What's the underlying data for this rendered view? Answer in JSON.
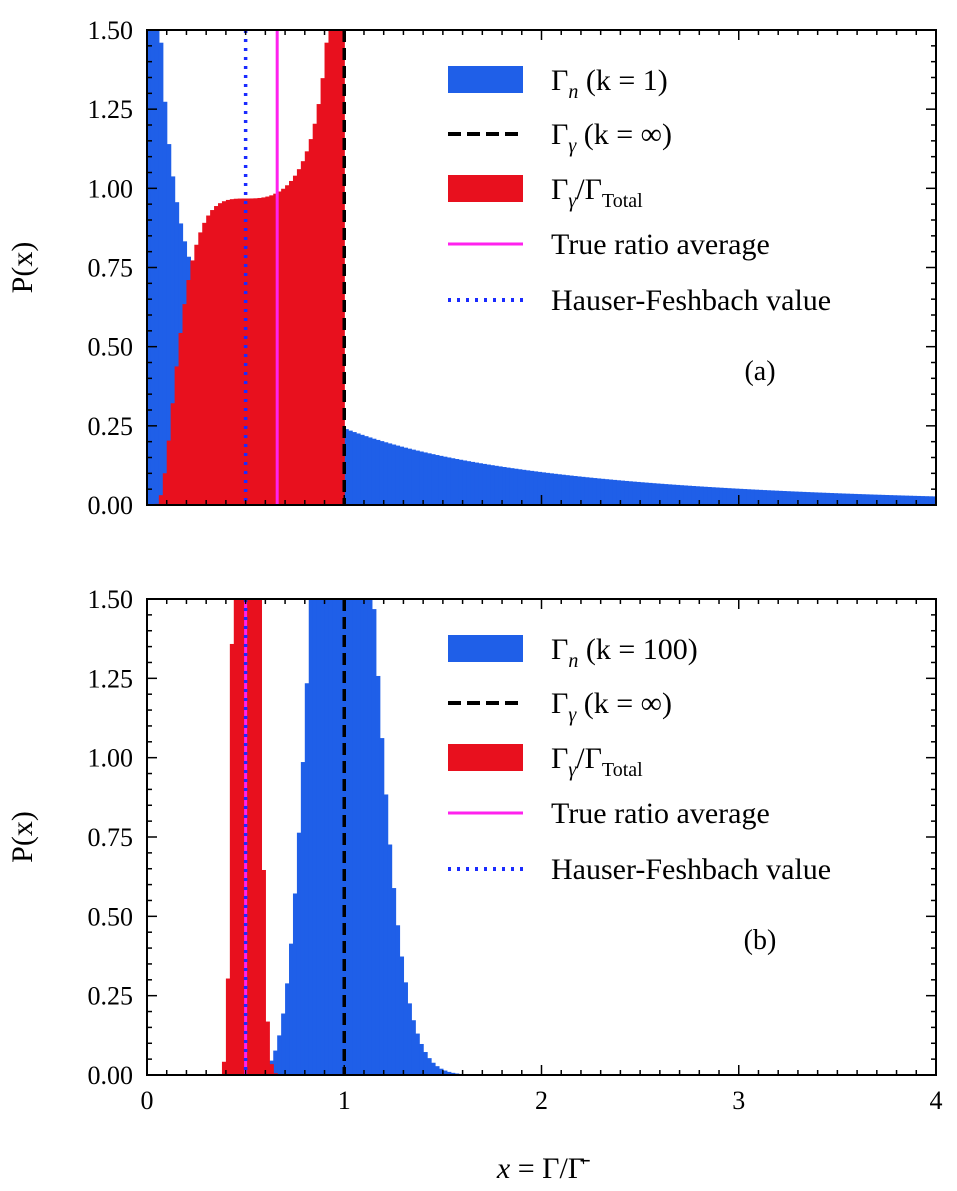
{
  "figure": {
    "xlabel": "x = Γ/Γ̄",
    "xlabel_parts": {
      "italic_x": "x",
      "eq": " = Γ/",
      "gammabar": "Γ̄"
    },
    "xticks": [
      "0",
      "1",
      "2",
      "3",
      "4"
    ],
    "yticks": [
      "0.00",
      "0.25",
      "0.50",
      "0.75",
      "1.00",
      "1.25",
      "1.50"
    ]
  },
  "chart_data": [
    {
      "type": "bar",
      "panel": "(a)",
      "title": "",
      "xlabel": "",
      "ylabel": "P(x)",
      "xlim": [
        0,
        4
      ],
      "ylim": [
        0,
        1.5
      ],
      "legend_position": "top-right",
      "series": [
        {
          "name": "Γn (k = 1)",
          "legend": {
            "base": "Γ",
            "sub": "n",
            "rest": " (k = 1)"
          },
          "kind": "histogram",
          "color": "#1f5fe8",
          "dist": "chi2",
          "k": 1,
          "bin_width": 0.02,
          "ymax_clip": 1.5
        },
        {
          "name": "Γγ (k = ∞)",
          "legend": {
            "base": "Γ",
            "sub": "γ",
            "rest": " (k = ∞)"
          },
          "kind": "vline",
          "x": 1.0,
          "style": "dashed",
          "color": "#000000"
        },
        {
          "name": "Γγ/ΓTotal",
          "legend": {
            "base": "Γ",
            "sub": "γ",
            "rest": "/Γ",
            "sub2": "Total"
          },
          "kind": "histogram",
          "color": "#e8101e",
          "dist": "ratio",
          "k": 1,
          "bin_width": 0.02,
          "ymax_clip": 1.5
        },
        {
          "name": "True ratio average",
          "legend": {
            "text": "True ratio average"
          },
          "kind": "vline",
          "x": 0.66,
          "style": "solid",
          "color": "#ff22ee"
        },
        {
          "name": "Hauser-Feshbach value",
          "legend": {
            "text": "Hauser-Feshbach value"
          },
          "kind": "vline",
          "x": 0.5,
          "style": "dotted",
          "color": "#1a2bff"
        }
      ]
    },
    {
      "type": "bar",
      "panel": "(b)",
      "title": "",
      "xlabel": "x = Γ/Γ̄",
      "ylabel": "P(x)",
      "xlim": [
        0,
        4
      ],
      "ylim": [
        0,
        1.5
      ],
      "legend_position": "top-right",
      "series": [
        {
          "name": "Γn (k = 100)",
          "legend": {
            "base": "Γ",
            "sub": "n",
            "rest": " (k = 100)"
          },
          "kind": "histogram",
          "color": "#1f5fe8",
          "dist": "chi2",
          "k": 100,
          "bin_width": 0.02,
          "ymax_clip": 1.5
        },
        {
          "name": "Γγ (k = ∞)",
          "legend": {
            "base": "Γ",
            "sub": "γ",
            "rest": " (k = ∞)"
          },
          "kind": "vline",
          "x": 1.0,
          "style": "dashed",
          "color": "#000000"
        },
        {
          "name": "Γγ/ΓTotal",
          "legend": {
            "base": "Γ",
            "sub": "γ",
            "rest": "/Γ",
            "sub2": "Total"
          },
          "kind": "histogram",
          "color": "#e8101e",
          "dist": "ratio",
          "k": 100,
          "bin_width": 0.02,
          "ymax_clip": 1.5
        },
        {
          "name": "True ratio average",
          "legend": {
            "text": "True ratio average"
          },
          "kind": "vline",
          "x": 0.5,
          "style": "solid",
          "color": "#ff22ee"
        },
        {
          "name": "Hauser-Feshbach value",
          "legend": {
            "text": "Hauser-Feshbach value"
          },
          "kind": "vline",
          "x": 0.5,
          "style": "dotted",
          "color": "#1a2bff"
        }
      ]
    }
  ]
}
